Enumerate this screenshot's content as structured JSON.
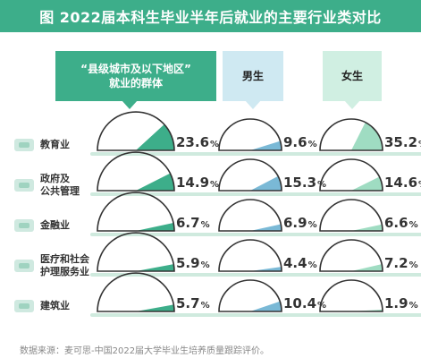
{
  "title": "图  2022届本科生毕业半年后就业的主要行业类对比",
  "headers": {
    "main": "“县级城市及以下地区”\n就业的群体",
    "male": "男生",
    "female": "女生"
  },
  "footnote": "数据来源：麦可思-中国2022届大学毕业生培养质量跟踪评价。",
  "colors": {
    "main": "#3dae8a",
    "male": "#7ab9d6",
    "female": "#9fdcc2",
    "gauge_outline": "#333333"
  },
  "chart_data": {
    "type": "gauge",
    "unit": "%",
    "categories": [
      "教育业",
      "政府及公共管理",
      "金融业",
      "医疗和社会护理服务业",
      "建筑业"
    ],
    "category_labels": [
      "教育业",
      "政府及\n公共管理",
      "金融业",
      "医疗和社会\n护理服务业",
      "建筑业"
    ],
    "series": [
      {
        "name": "“县级城市及以下地区”就业的群体",
        "values": [
          23.6,
          14.9,
          6.7,
          5.9,
          5.7
        ]
      },
      {
        "name": "男生",
        "values": [
          9.6,
          15.3,
          6.9,
          4.4,
          10.4
        ]
      },
      {
        "name": "女生",
        "values": [
          35.2,
          14.6,
          6.6,
          7.2,
          1.9
        ]
      }
    ]
  }
}
